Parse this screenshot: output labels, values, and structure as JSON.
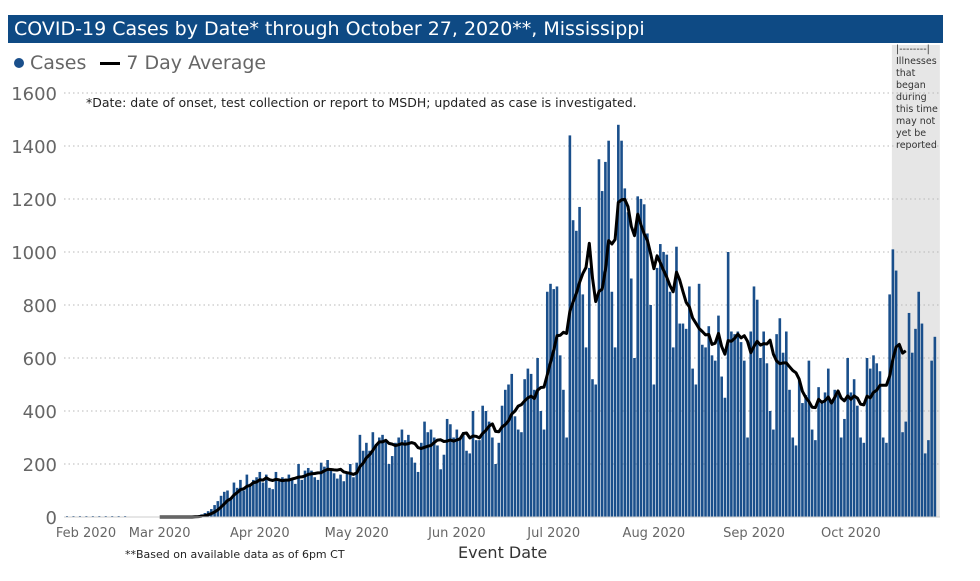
{
  "chart_data": {
    "type": "bar",
    "title": "COVID-19 Cases by Date* through October 27, 2020**, Mississippi",
    "xlabel": "Event Date",
    "ylabel": "",
    "ylim": [
      0,
      1600
    ],
    "yticks": [
      "0",
      "200",
      "400",
      "600",
      "800",
      "1000",
      "1200",
      "1400",
      "1600"
    ],
    "xticks": [
      "Feb 2020",
      "Mar 2020",
      "Apr 2020",
      "May 2020",
      "Jun 2020",
      "Jul 2020",
      "Aug 2020",
      "Sep 2020",
      "Oct 2020"
    ],
    "grid": true,
    "legend": {
      "position": "top-left",
      "entries": [
        "Cases",
        "7 Day Average"
      ]
    },
    "colors": {
      "bars": "#1a4f8b",
      "average": "#000000",
      "title_bg": "#0e4a84",
      "shade": "#e6e6e6"
    },
    "footnote": "*Date: date of onset, test collection or report to MSDH; updated as case is investigated.",
    "basis_note": "**Based on available data as of 6pm CT",
    "shaded_note": "|--------| Illnesses that began during this time may not yet be reported",
    "series": [
      {
        "name": "Cases",
        "type": "bar",
        "values_by_month": {
          "Mar 2020": [
            0,
            0,
            0,
            0,
            0,
            0,
            0,
            0,
            0,
            0,
            1,
            3,
            6,
            10,
            15,
            22,
            30,
            45,
            60,
            80,
            95,
            100,
            70,
            130,
            110,
            140,
            100,
            160,
            125,
            140,
            150
          ],
          "Apr 2020": [
            170,
            130,
            160,
            110,
            105,
            170,
            135,
            150,
            145,
            160,
            140,
            125,
            200,
            140,
            175,
            185,
            175,
            150,
            140,
            205,
            190,
            215,
            180,
            165,
            145,
            160,
            135,
            170,
            200,
            150
          ],
          "May 2020": [
            205,
            310,
            250,
            280,
            250,
            320,
            275,
            300,
            310,
            290,
            200,
            230,
            280,
            300,
            330,
            290,
            310,
            225,
            205,
            170,
            280,
            360,
            320,
            330,
            300,
            270,
            180,
            235,
            370,
            350,
            300
          ],
          "Jun 2020": [
            330,
            300,
            320,
            250,
            240,
            400,
            290,
            290,
            420,
            400,
            360,
            300,
            200,
            280,
            420,
            480,
            500,
            540,
            380,
            330,
            320,
            520,
            560,
            540,
            480,
            600,
            400,
            330,
            850,
            880
          ],
          "Jul 2020": [
            860,
            870,
            610,
            480,
            300,
            1440,
            1120,
            1080,
            1170,
            840,
            640,
            940,
            520,
            500,
            1350,
            1230,
            1340,
            1420,
            850,
            640,
            1480,
            1420,
            1240,
            1150,
            900,
            600,
            1210,
            1200,
            1180,
            1070,
            800
          ],
          "Aug 2020": [
            500,
            940,
            1030,
            1000,
            990,
            850,
            640,
            1020,
            730,
            730,
            710,
            870,
            560,
            500,
            880,
            650,
            640,
            720,
            610,
            590,
            760,
            530,
            450,
            1000,
            700,
            690,
            700,
            660,
            590,
            300,
            700
          ],
          "Sep 2020": [
            870,
            820,
            600,
            700,
            580,
            400,
            330,
            690,
            750,
            620,
            700,
            480,
            300,
            270,
            520,
            430,
            460,
            590,
            330,
            290,
            490,
            440,
            470,
            560,
            430,
            480,
            460,
            300,
            370,
            600
          ],
          "Oct 2020": [
            470,
            520,
            420,
            300,
            280,
            600,
            560,
            610,
            580,
            550,
            300,
            280,
            840,
            1010,
            930,
            650,
            320,
            360,
            770,
            620,
            710,
            850,
            730,
            240,
            290,
            590,
            680
          ]
        }
      },
      {
        "name": "7 Day Average",
        "type": "line",
        "method": "rolling 7-day mean of Cases",
        "through": "Oct 18"
      }
    ],
    "shaded_period": [
      "Oct 14",
      "Oct 27"
    ]
  }
}
